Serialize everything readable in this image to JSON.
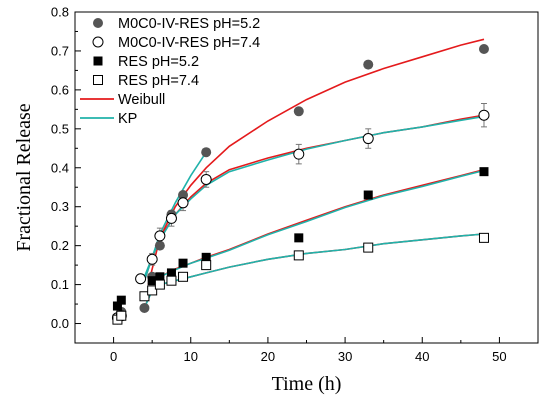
{
  "chart_data": {
    "type": "scatter",
    "xlabel": "Time (h)",
    "ylabel": "Fractional Release",
    "xlim": [
      -5,
      55
    ],
    "ylim": [
      -0.05,
      0.8
    ],
    "xticks": [
      0,
      10,
      20,
      30,
      40,
      50
    ],
    "yticks": [
      0.0,
      0.1,
      0.2,
      0.3,
      0.4,
      0.5,
      0.6,
      0.7,
      0.8
    ],
    "grid": false,
    "legend_position": "top-left",
    "series": [
      {
        "name": "M0C0-IV-RES pH=5.2",
        "marker": "filled-circle",
        "color": "#555555",
        "x": [
          0.5,
          1,
          4,
          5,
          6,
          7.5,
          9,
          12,
          24,
          33,
          48
        ],
        "y": [
          0.01,
          0.03,
          0.04,
          0.12,
          0.2,
          0.28,
          0.33,
          0.44,
          0.545,
          0.665,
          0.705
        ],
        "err": [
          0,
          0,
          0,
          0,
          0,
          0,
          0,
          0,
          0,
          0,
          0
        ]
      },
      {
        "name": "M0C0-IV-RES pH=7.4",
        "marker": "open-circle",
        "color": "#000000",
        "x": [
          0.5,
          1,
          3.5,
          5,
          6,
          7.5,
          9,
          12,
          24,
          33,
          48
        ],
        "y": [
          0.015,
          0.02,
          0.115,
          0.165,
          0.225,
          0.27,
          0.31,
          0.37,
          0.435,
          0.475,
          0.535
        ],
        "err": [
          0.01,
          0.01,
          0.01,
          0.015,
          0.02,
          0.02,
          0.02,
          0.02,
          0.025,
          0.025,
          0.03
        ]
      },
      {
        "name": "RES pH=5.2",
        "marker": "filled-square",
        "color": "#000000",
        "x": [
          0.5,
          1,
          5,
          6,
          7.5,
          9,
          12,
          24,
          33,
          48
        ],
        "y": [
          0.045,
          0.06,
          0.11,
          0.12,
          0.13,
          0.155,
          0.17,
          0.22,
          0.33,
          0.39
        ],
        "err": [
          0,
          0,
          0,
          0,
          0,
          0,
          0,
          0,
          0,
          0
        ]
      },
      {
        "name": "RES pH=7.4",
        "marker": "open-square",
        "color": "#000000",
        "x": [
          0.5,
          1,
          4,
          5,
          6,
          7.5,
          9,
          12,
          24,
          33,
          48
        ],
        "y": [
          0.01,
          0.02,
          0.07,
          0.085,
          0.1,
          0.11,
          0.12,
          0.15,
          0.175,
          0.195,
          0.22
        ],
        "err": [
          0,
          0,
          0,
          0,
          0,
          0,
          0,
          0,
          0,
          0,
          0
        ]
      }
    ],
    "fits": [
      {
        "name": "Weibull",
        "color": "#e41a1c",
        "curves": [
          {
            "x": [
              4.5,
              6,
              8,
              10,
              12,
              15,
              20,
              25,
              30,
              35,
              40,
              45,
              48
            ],
            "y": [
              0.1,
              0.22,
              0.3,
              0.355,
              0.4,
              0.455,
              0.52,
              0.575,
              0.62,
              0.655,
              0.685,
              0.715,
              0.73
            ]
          },
          {
            "x": [
              4,
              5,
              6,
              8,
              10,
              12,
              15,
              20,
              25,
              30,
              35,
              40,
              45,
              48
            ],
            "y": [
              0.11,
              0.17,
              0.22,
              0.28,
              0.325,
              0.36,
              0.395,
              0.425,
              0.45,
              0.47,
              0.49,
              0.505,
              0.525,
              0.535
            ]
          },
          {
            "x": [
              5,
              6,
              8,
              10,
              12,
              15,
              20,
              25,
              30,
              35,
              40,
              45,
              48
            ],
            "y": [
              0.105,
              0.12,
              0.14,
              0.155,
              0.17,
              0.19,
              0.23,
              0.265,
              0.3,
              0.33,
              0.355,
              0.38,
              0.395
            ]
          },
          {
            "x": [
              4,
              5,
              6,
              8,
              10,
              12,
              15,
              20,
              25,
              30,
              35,
              40,
              45,
              48
            ],
            "y": [
              0.04,
              0.09,
              0.1,
              0.11,
              0.12,
              0.13,
              0.145,
              0.165,
              0.18,
              0.19,
              0.205,
              0.215,
              0.225,
              0.23
            ]
          }
        ]
      },
      {
        "name": "KP",
        "color": "#20b2aa",
        "curves": [
          {
            "x": [
              4,
              5,
              6,
              8,
              10,
              12
            ],
            "y": [
              0.12,
              0.17,
              0.23,
              0.31,
              0.38,
              0.44
            ]
          },
          {
            "x": [
              4,
              5,
              6,
              8,
              10,
              12,
              15,
              20,
              25,
              30,
              35,
              40,
              45,
              48
            ],
            "y": [
              0.11,
              0.17,
              0.215,
              0.28,
              0.32,
              0.355,
              0.39,
              0.42,
              0.448,
              0.47,
              0.49,
              0.505,
              0.522,
              0.532
            ]
          },
          {
            "x": [
              5,
              6,
              8,
              10,
              12,
              15,
              20,
              25,
              30,
              35,
              40,
              45,
              48
            ],
            "y": [
              0.105,
              0.12,
              0.138,
              0.155,
              0.168,
              0.188,
              0.228,
              0.262,
              0.298,
              0.328,
              0.352,
              0.378,
              0.393
            ]
          },
          {
            "x": [
              4,
              5,
              6,
              8,
              10,
              12,
              15,
              20,
              25,
              30,
              35,
              40,
              45,
              48
            ],
            "y": [
              0.04,
              0.085,
              0.1,
              0.11,
              0.12,
              0.13,
              0.145,
              0.165,
              0.18,
              0.19,
              0.205,
              0.215,
              0.225,
              0.23
            ]
          }
        ]
      }
    ]
  }
}
